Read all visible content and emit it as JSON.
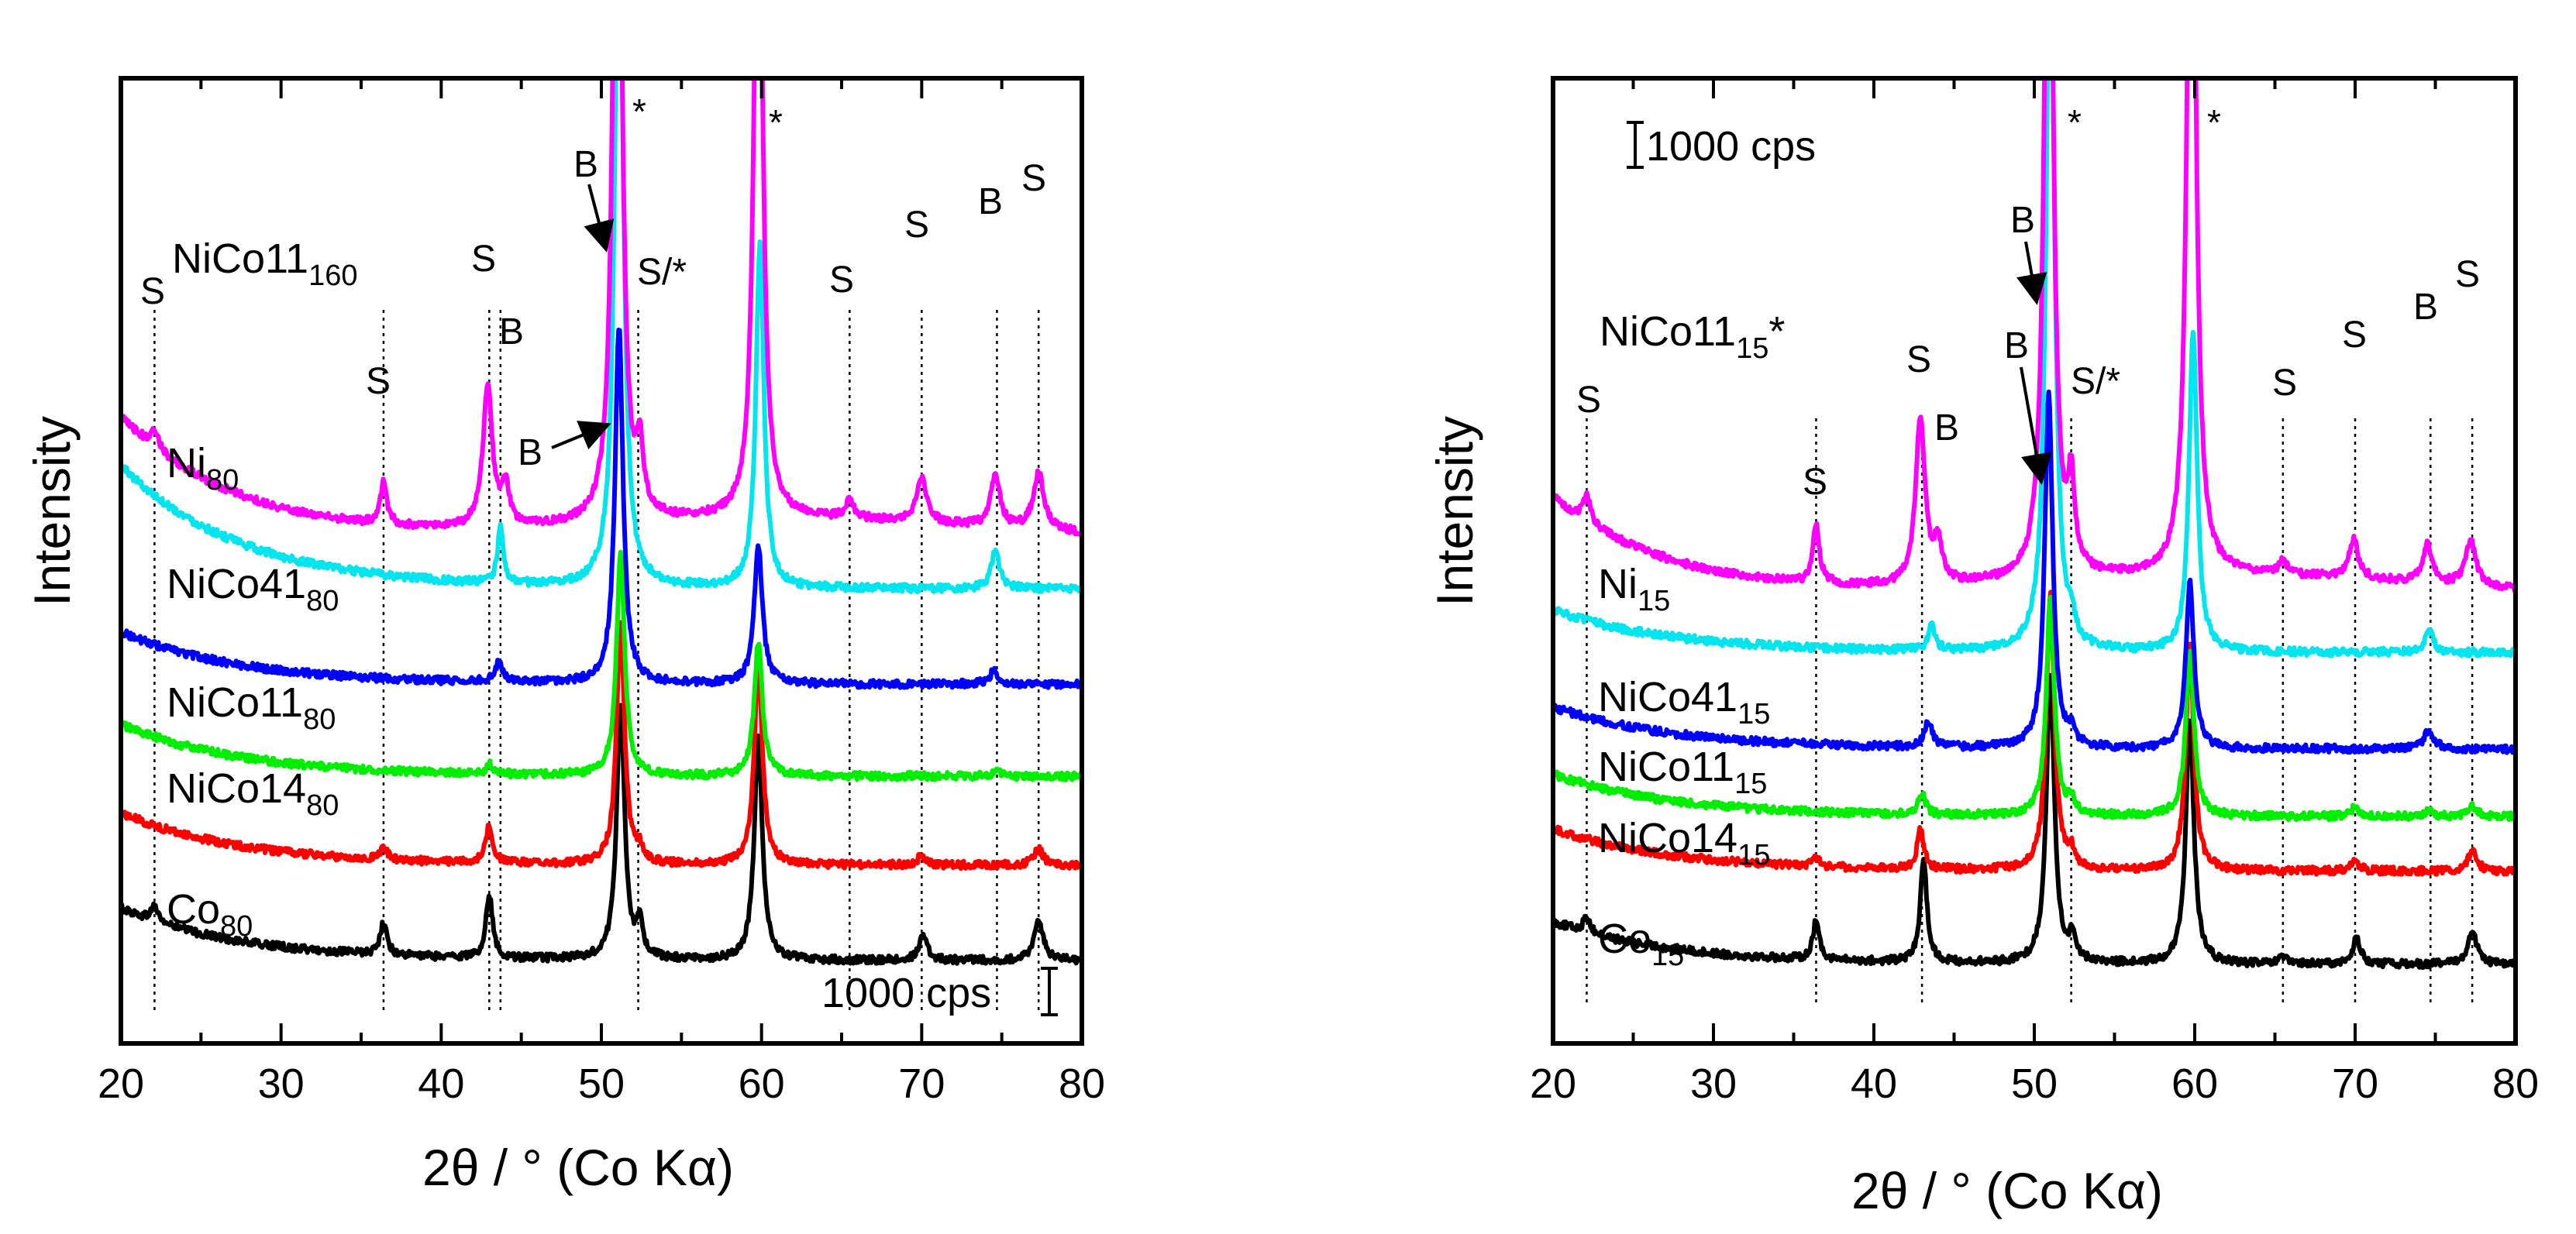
{
  "chart_data": [
    {
      "type": "line",
      "panel": "left",
      "xlabel": "2θ / °   (Co Kα)",
      "ylabel": "Intensity",
      "xlim": [
        20,
        80
      ],
      "xticks": [
        20,
        30,
        40,
        50,
        60,
        70,
        80
      ],
      "tick_labels": [
        "20",
        "30",
        "40",
        "50",
        "60",
        "70",
        "80"
      ],
      "scale_bar_label": "1000 cps",
      "reference_lines": [
        22.1,
        36.4,
        43.0,
        43.7,
        52.3,
        65.5,
        70.0,
        74.7,
        77.3
      ],
      "series": [
        {
          "name": "Co",
          "sub": "80",
          "color": "#000000",
          "base": 0.0,
          "peaks": [
            [
              22.1,
              0.25,
              0.25
            ],
            [
              36.4,
              0.5,
              0.25
            ],
            [
              43.0,
              1.0,
              0.25
            ],
            [
              51.2,
              4.0,
              0.3
            ],
            [
              52.4,
              0.5,
              0.25
            ],
            [
              59.8,
              3.5,
              0.3
            ],
            [
              70.1,
              0.4,
              0.3
            ],
            [
              77.3,
              0.6,
              0.35
            ]
          ]
        },
        {
          "name": "NiCo14",
          "sub": "80",
          "color": "#ff0000",
          "base": 1.5,
          "peaks": [
            [
              36.4,
              0.2,
              0.25
            ],
            [
              43.0,
              0.6,
              0.25
            ],
            [
              51.2,
              3.8,
              0.3
            ],
            [
              52.4,
              0.2,
              0.25
            ],
            [
              59.8,
              3.2,
              0.3
            ],
            [
              70.0,
              0.15,
              0.3
            ],
            [
              77.3,
              0.25,
              0.35
            ]
          ]
        },
        {
          "name": "NiCo11",
          "sub": "80",
          "color": "#00ee00",
          "base": 2.9,
          "peaks": [
            [
              43.0,
              0.15,
              0.25
            ],
            [
              51.2,
              3.5,
              0.3
            ],
            [
              59.8,
              2.1,
              0.3
            ],
            [
              74.7,
              0.1,
              0.3
            ]
          ]
        },
        {
          "name": "NiCo41",
          "sub": "80",
          "color": "#0000ff",
          "base": 4.35,
          "peaks": [
            [
              43.6,
              0.3,
              0.3
            ],
            [
              51.1,
              5.6,
              0.3
            ],
            [
              59.8,
              2.2,
              0.3
            ],
            [
              74.5,
              0.2,
              0.35
            ]
          ]
        },
        {
          "name": "Ni",
          "sub": "80",
          "color": "#00e5ee",
          "base": 5.85,
          "peaks": [
            [
              43.7,
              0.9,
              0.2
            ],
            [
              51.1,
              12.0,
              0.3
            ],
            [
              59.9,
              5.4,
              0.3
            ],
            [
              74.6,
              0.6,
              0.3
            ]
          ]
        },
        {
          "name": "NiCo11",
          "sub": "160",
          "color": "#ff00ff",
          "base": 6.6,
          "peaks": [
            [
              22.1,
              0.3,
              0.3
            ],
            [
              36.4,
              0.65,
              0.25
            ],
            [
              42.9,
              2.2,
              0.35
            ],
            [
              44.0,
              0.6,
              0.3
            ],
            [
              51.0,
              14.0,
              0.3
            ],
            [
              52.4,
              1.0,
              0.25
            ],
            [
              59.8,
              12.0,
              0.3
            ],
            [
              65.5,
              0.3,
              0.3
            ],
            [
              70.0,
              0.7,
              0.35
            ],
            [
              74.6,
              0.8,
              0.35
            ],
            [
              77.3,
              0.9,
              0.4
            ]
          ]
        }
      ],
      "annotations": [
        "S",
        "S",
        "S",
        "B",
        "B",
        "S/*",
        "S",
        "S",
        "B",
        "S",
        "B",
        "*",
        "*"
      ]
    },
    {
      "type": "line",
      "panel": "right",
      "xlabel": "2θ / °   (Co Kα)",
      "ylabel": "Intensity",
      "xlim": [
        20,
        80
      ],
      "xticks": [
        20,
        30,
        40,
        50,
        60,
        70,
        80
      ],
      "tick_labels": [
        "20",
        "30",
        "40",
        "50",
        "60",
        "70",
        "80"
      ],
      "scale_bar_label": "1000 cps",
      "reference_lines": [
        22.1,
        36.4,
        43.0,
        52.3,
        65.5,
        70.0,
        74.7,
        77.3
      ],
      "series": [
        {
          "name": "Co",
          "sub": "15",
          "color": "#000000",
          "base": 0.0,
          "peaks": [
            [
              22.1,
              0.25,
              0.25
            ],
            [
              36.4,
              0.6,
              0.25
            ],
            [
              43.1,
              1.6,
              0.25
            ],
            [
              51.0,
              4.5,
              0.3
            ],
            [
              52.4,
              0.4,
              0.25
            ],
            [
              59.7,
              3.8,
              0.3
            ],
            [
              65.5,
              0.1,
              0.3
            ],
            [
              70.1,
              0.4,
              0.3
            ],
            [
              77.3,
              0.5,
              0.35
            ]
          ]
        },
        {
          "name": "NiCo14",
          "sub": "15",
          "color": "#ff0000",
          "base": 1.45,
          "peaks": [
            [
              36.4,
              0.15,
              0.25
            ],
            [
              42.9,
              0.6,
              0.25
            ],
            [
              51.0,
              4.3,
              0.3
            ],
            [
              52.3,
              0.25,
              0.25
            ],
            [
              59.7,
              3.5,
              0.3
            ],
            [
              70.0,
              0.15,
              0.3
            ],
            [
              77.3,
              0.3,
              0.35
            ]
          ]
        },
        {
          "name": "NiCo11",
          "sub": "15",
          "color": "#00ee00",
          "base": 2.3,
          "peaks": [
            [
              43.0,
              0.35,
              0.25
            ],
            [
              51.0,
              3.4,
              0.3
            ],
            [
              52.3,
              0.2,
              0.25
            ],
            [
              59.7,
              2.6,
              0.3
            ],
            [
              70.0,
              0.15,
              0.3
            ],
            [
              74.6,
              0.1,
              0.3
            ],
            [
              77.3,
              0.15,
              0.35
            ]
          ]
        },
        {
          "name": "NiCo41",
          "sub": "15",
          "color": "#0000ff",
          "base": 3.35,
          "peaks": [
            [
              43.4,
              0.4,
              0.3
            ],
            [
              50.9,
              5.5,
              0.3
            ],
            [
              52.3,
              0.2,
              0.25
            ],
            [
              59.7,
              2.6,
              0.3
            ],
            [
              74.6,
              0.3,
              0.35
            ]
          ]
        },
        {
          "name": "Ni",
          "sub": "15",
          "color": "#00e5ee",
          "base": 4.85,
          "peaks": [
            [
              43.6,
              0.4,
              0.25
            ],
            [
              51.0,
              12.0,
              0.3
            ],
            [
              52.3,
              0.3,
              0.25
            ],
            [
              59.9,
              5.0,
              0.3
            ],
            [
              74.6,
              0.35,
              0.3
            ]
          ]
        },
        {
          "name": "NiCo11",
          "sub": "15",
          "suffix": "*",
          "color": "#ff00ff",
          "base": 5.7,
          "peaks": [
            [
              22.1,
              0.4,
              0.3
            ],
            [
              36.4,
              0.9,
              0.25
            ],
            [
              42.9,
              2.6,
              0.35
            ],
            [
              44.0,
              0.6,
              0.3
            ],
            [
              50.9,
              14.0,
              0.3
            ],
            [
              52.3,
              1.3,
              0.25
            ],
            [
              59.8,
              14.0,
              0.3
            ],
            [
              65.5,
              0.2,
              0.3
            ],
            [
              69.9,
              0.6,
              0.35
            ],
            [
              74.5,
              0.6,
              0.35
            ],
            [
              77.2,
              0.7,
              0.4
            ]
          ]
        }
      ],
      "annotations": [
        "S",
        "S",
        "S",
        "B",
        "B",
        "B",
        "S/*",
        "S",
        "S",
        "B",
        "S",
        "*",
        "*"
      ]
    }
  ]
}
